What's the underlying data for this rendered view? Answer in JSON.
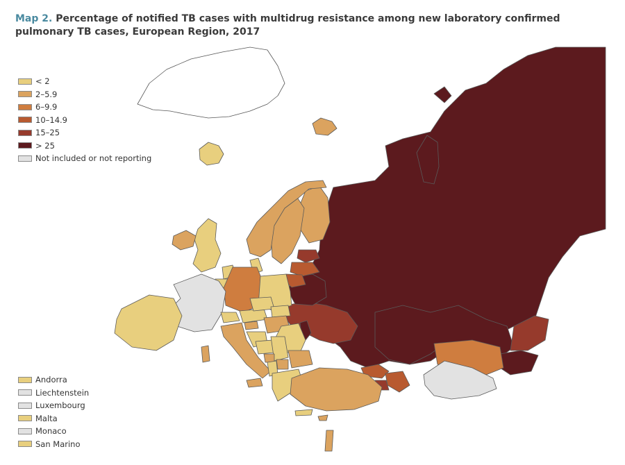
{
  "title": {
    "map_no": "Map 2.",
    "text": " Percentage of notified TB cases with multidrug resistance among new laboratory confirmed pulmonary TB cases, European Region, 2017"
  },
  "legend": [
    {
      "label": "< 2",
      "color": "#e8cf7e"
    },
    {
      "label": "2–5.9",
      "color": "#dba35f"
    },
    {
      "label": "6–9.9",
      "color": "#cf7d3f"
    },
    {
      "label": "10–14.9",
      "color": "#b85a30"
    },
    {
      "label": "15–25",
      "color": "#963a2c"
    },
    {
      "label": "> 25",
      "color": "#5c1a1e"
    },
    {
      "label": "Not included or not reporting",
      "color": "#e2e2e2"
    }
  ],
  "small_countries": [
    {
      "label": "Andorra",
      "color": "#e8cf7e"
    },
    {
      "label": "Liechtenstein",
      "color": "#e2e2e2"
    },
    {
      "label": "Luxembourg",
      "color": "#e2e2e2"
    },
    {
      "label": "Malta",
      "color": "#e8cf7e"
    },
    {
      "label": "Monaco",
      "color": "#e2e2e2"
    },
    {
      "label": "San Marino",
      "color": "#e8cf7e"
    }
  ],
  "colors": {
    "lt2": "#e8cf7e",
    "c2_6": "#dba35f",
    "c6_10": "#cf7d3f",
    "c10_15": "#b85a30",
    "c15_25": "#963a2c",
    "gt25": "#5c1a1e",
    "na": "#e2e2e2",
    "border": "#5a5a5a"
  }
}
